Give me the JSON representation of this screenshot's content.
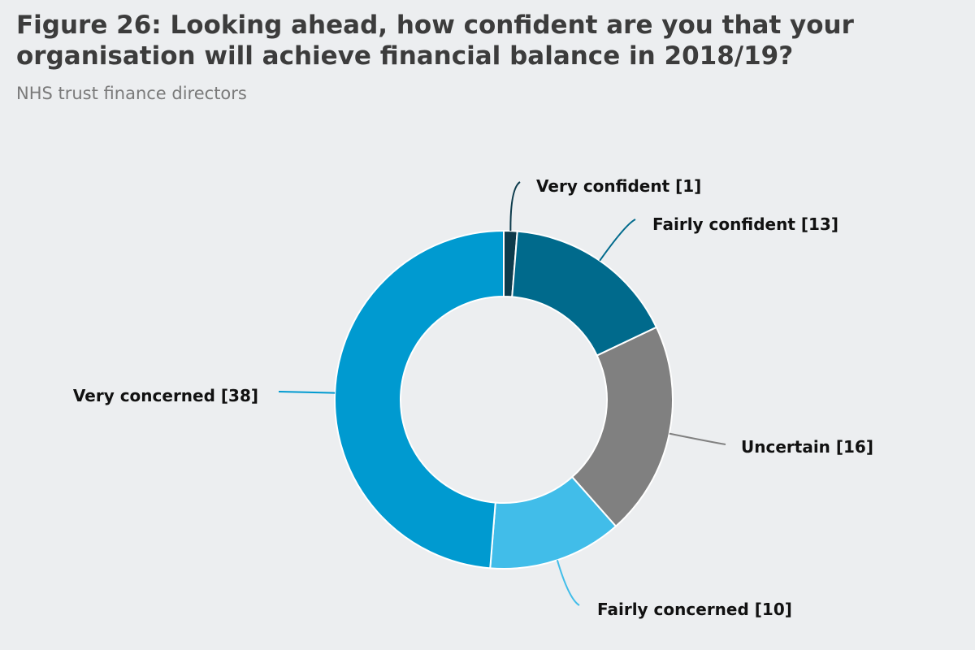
{
  "header": {
    "title": "Figure 26: Looking ahead, how confident are you that your organisation will achieve financial balance in 2018/19?",
    "subtitle": "NHS trust finance directors"
  },
  "chart_data": {
    "type": "pie",
    "donut": true,
    "title": "Figure 26: Looking ahead, how confident are you that your organisation will achieve financial balance in 2018/19?",
    "subtitle": "NHS trust finance directors",
    "legend": "none",
    "categories": [
      "Very confident",
      "Fairly confident",
      "Uncertain",
      "Fairly concerned",
      "Very concerned"
    ],
    "values": [
      1,
      13,
      16,
      10,
      38
    ],
    "labels": [
      "Very confident [1]",
      "Fairly confident [13]",
      "Uncertain [16]",
      "Fairly concerned [10]",
      "Very concerned [38]"
    ],
    "colors": [
      "#0d3b4c",
      "#006a8c",
      "#808080",
      "#41bde9",
      "#009ad0"
    ]
  }
}
